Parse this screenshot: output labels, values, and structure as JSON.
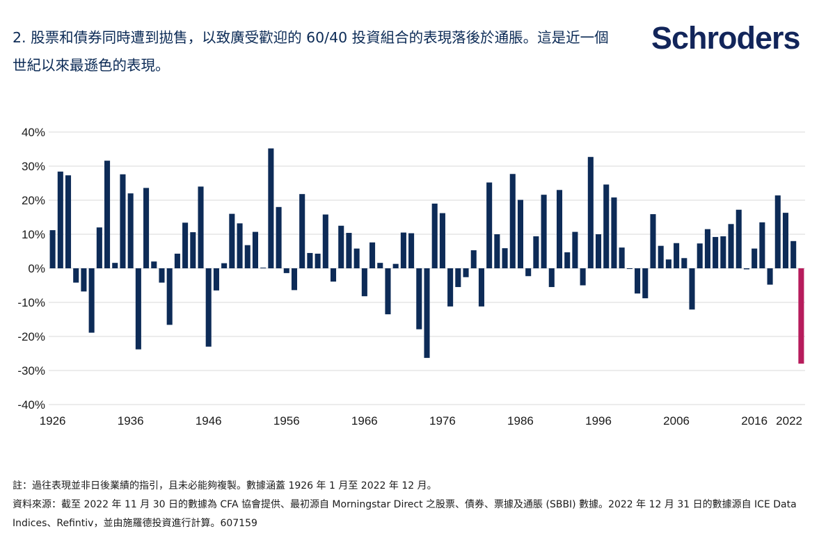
{
  "header": {
    "title": "2. 股票和債券同時遭到拋售，以致廣受歡迎的 60/40 投資組合的表現落後於通脹。這是近一個世紀以來最遜色的表現。",
    "brand": "Schroders"
  },
  "chart_data": {
    "type": "bar",
    "title": "",
    "xlabel": "",
    "ylabel": "",
    "ylim": [
      -40,
      40
    ],
    "y_ticks": [
      "40%",
      "30%",
      "20%",
      "10%",
      "0%",
      "-10%",
      "-20%",
      "-30%",
      "-40%"
    ],
    "x_ticks": [
      "1926",
      "1936",
      "1946",
      "1956",
      "1966",
      "1976",
      "1986",
      "1996",
      "2006",
      "2016",
      "2022"
    ],
    "grid": true,
    "colors": {
      "bar": "#0d2b57",
      "highlight": "#b71c5c",
      "grid": "#d9d9d9"
    },
    "highlight_category": "2022",
    "categories": [
      "1926",
      "1927",
      "1928",
      "1929",
      "1930",
      "1931",
      "1932",
      "1933",
      "1934",
      "1935",
      "1936",
      "1937",
      "1938",
      "1939",
      "1940",
      "1941",
      "1942",
      "1943",
      "1944",
      "1945",
      "1946",
      "1947",
      "1948",
      "1949",
      "1950",
      "1951",
      "1952",
      "1953",
      "1954",
      "1955",
      "1956",
      "1957",
      "1958",
      "1959",
      "1960",
      "1961",
      "1962",
      "1963",
      "1964",
      "1965",
      "1966",
      "1967",
      "1968",
      "1969",
      "1970",
      "1971",
      "1972",
      "1973",
      "1974",
      "1975",
      "1976",
      "1977",
      "1978",
      "1979",
      "1980",
      "1981",
      "1982",
      "1983",
      "1984",
      "1985",
      "1986",
      "1987",
      "1988",
      "1989",
      "1990",
      "1991",
      "1992",
      "1993",
      "1994",
      "1995",
      "1996",
      "1997",
      "1998",
      "1999",
      "2000",
      "2001",
      "2002",
      "2003",
      "2004",
      "2005",
      "2006",
      "2007",
      "2008",
      "2009",
      "2010",
      "2011",
      "2012",
      "2013",
      "2014",
      "2015",
      "2016",
      "2017",
      "2018",
      "2019",
      "2020",
      "2021",
      "2022"
    ],
    "values": [
      11.2,
      28.4,
      27.3,
      -4.2,
      -6.8,
      -18.9,
      12.0,
      31.6,
      1.6,
      27.6,
      22.0,
      -23.8,
      23.6,
      2.0,
      -4.2,
      -16.6,
      4.3,
      13.4,
      10.6,
      24.0,
      -23.0,
      -6.5,
      1.5,
      16.0,
      13.2,
      6.8,
      10.7,
      0.2,
      35.2,
      18.0,
      -1.4,
      -6.4,
      21.8,
      4.5,
      4.3,
      15.8,
      -3.9,
      12.5,
      10.4,
      5.8,
      -8.2,
      7.6,
      1.6,
      -13.5,
      1.3,
      10.5,
      10.3,
      -17.9,
      -26.3,
      19.0,
      16.2,
      -11.2,
      -5.5,
      -2.6,
      5.3,
      -11.2,
      25.2,
      10.0,
      5.9,
      27.7,
      20.1,
      -2.3,
      9.4,
      21.6,
      -5.5,
      23.0,
      4.7,
      10.7,
      -5.0,
      32.7,
      10.0,
      24.6,
      20.8,
      6.1,
      -0.2,
      -7.4,
      -8.8,
      15.9,
      6.6,
      2.6,
      7.4,
      3.0,
      -12.1,
      7.3,
      11.5,
      9.2,
      9.4,
      13.0,
      17.2,
      -0.3,
      5.8,
      13.5,
      -4.8,
      21.4,
      16.3,
      8.0,
      -28.0
    ]
  },
  "notes": {
    "note": "註：過往表現並非日後業績的指引，且未必能夠複製。數據涵蓋 1926 年 1 月至 2022 年 12 月。",
    "source": "資料來源：截至 2022 年 11 月 30 日的數據為 CFA 協會提供、最初源自 Morningstar Direct 之股票、債券、票據及通脹 (SBBI) 數據。2022 年 12 月 31 日的數據源自 ICE Data Indices、Refintiv，並由施羅德投資進行計算。607159"
  }
}
